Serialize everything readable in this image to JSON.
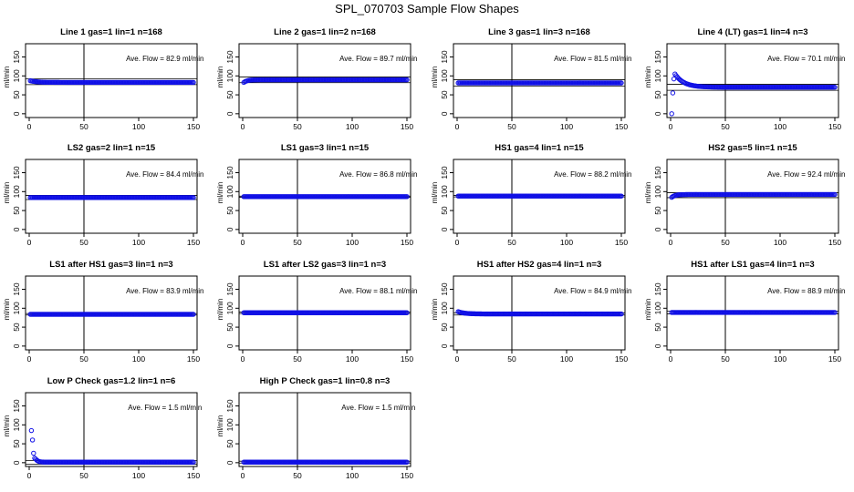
{
  "page": {
    "title": "SPL_070703  Sample Flow Shapes"
  },
  "style": {
    "point_color": "#1010e6",
    "axis_color": "#000000"
  },
  "shared_axes": {
    "xticks": [
      0,
      50,
      100,
      150
    ],
    "yticks": [
      0,
      50,
      100,
      150
    ],
    "xlim": [
      0,
      150
    ],
    "ylim": [
      -10,
      185
    ],
    "ylabel": "ml/min",
    "vline_x": 50
  },
  "chart_data": [
    {
      "type": "scatter",
      "title": "Line 1 gas=1 lin=1 n=168",
      "annotation": "Ave. Flow =  82.9  ml/min",
      "hlines": [
        92,
        77
      ],
      "shape": "early_high",
      "base": 82.9,
      "start": 88
    },
    {
      "type": "scatter",
      "title": "Line 2 gas=1 lin=2 n=168",
      "annotation": "Ave. Flow =  89.7  ml/min",
      "hlines": [
        97,
        82
      ],
      "shape": "early_low",
      "base": 89.7,
      "start": 80
    },
    {
      "type": "scatter",
      "title": "Line 3 gas=1 lin=3 n=168",
      "annotation": "Ave. Flow =  81.5  ml/min",
      "hlines": [
        90,
        73
      ],
      "shape": "flat",
      "base": 81.5,
      "start": 82
    },
    {
      "type": "scatter",
      "title": "Line 4 (LT) gas=1 lin=4 n=3",
      "annotation": "Ave. Flow =  70.1  ml/min",
      "hlines": [
        78,
        62
      ],
      "shape": "spike_decay",
      "base": 70.1,
      "start": 5,
      "outliers": [
        [
          1,
          0
        ],
        [
          2,
          55
        ],
        [
          3,
          92
        ]
      ]
    },
    {
      "type": "scatter",
      "title": "LS2 gas=2 lin=1 n=15",
      "annotation": "Ave. Flow =  84.4  ml/min",
      "hlines": [
        90,
        79
      ],
      "shape": "flat",
      "base": 84.4,
      "start": 84
    },
    {
      "type": "scatter",
      "title": "LS1 gas=3 lin=1 n=15",
      "annotation": "Ave. Flow =  86.8  ml/min",
      "hlines": [
        88,
        85
      ],
      "shape": "flat",
      "base": 86.8,
      "start": 86
    },
    {
      "type": "scatter",
      "title": "HS1 gas=4 lin=1 n=15",
      "annotation": "Ave. Flow =  88.2  ml/min",
      "hlines": [
        90,
        86
      ],
      "shape": "flat",
      "base": 88.2,
      "start": 88
    },
    {
      "type": "scatter",
      "title": "HS2 gas=5 lin=1 n=15",
      "annotation": "Ave. Flow =  92.4  ml/min",
      "hlines": [
        97,
        84
      ],
      "shape": "early_low",
      "base": 92.4,
      "start": 82
    },
    {
      "type": "scatter",
      "title": "LS1 after HS1 gas=3 lin=1 n=3",
      "annotation": "Ave. Flow =  83.9  ml/min",
      "hlines": [
        86,
        82
      ],
      "shape": "flat",
      "base": 83.9,
      "start": 84
    },
    {
      "type": "scatter",
      "title": "LS1 after LS2 gas=3 lin=1 n=3",
      "annotation": "Ave. Flow =  88.1  ml/min",
      "hlines": [
        90,
        86
      ],
      "shape": "flat",
      "base": 88.1,
      "start": 88
    },
    {
      "type": "scatter",
      "title": "HS1 after HS2 gas=4 lin=1 n=3",
      "annotation": "Ave. Flow =  84.9  ml/min",
      "hlines": [
        88,
        82
      ],
      "shape": "early_high",
      "base": 84.9,
      "start": 92
    },
    {
      "type": "scatter",
      "title": "HS1 after LS1 gas=4 lin=1 n=3",
      "annotation": "Ave. Flow =  88.9  ml/min",
      "hlines": [
        92,
        85
      ],
      "shape": "flat",
      "base": 88.9,
      "start": 89
    },
    {
      "type": "scatter",
      "title": "Low P Check gas=1.2 lin=1 n=6",
      "annotation": "Ave. Flow =  1.5  ml/min",
      "hlines": [
        6,
        -4
      ],
      "shape": "spike_decay_low",
      "base": 1.5,
      "start": 85,
      "outliers": [
        [
          2,
          85
        ],
        [
          3,
          60
        ],
        [
          4,
          25
        ],
        [
          5,
          12
        ]
      ]
    },
    {
      "type": "scatter",
      "title": "High P Check gas=1 lin=0.8 n=3",
      "annotation": "Ave. Flow =  1.5  ml/min",
      "hlines": [
        4,
        -1
      ],
      "shape": "flat",
      "base": 1.5,
      "start": 2
    }
  ]
}
